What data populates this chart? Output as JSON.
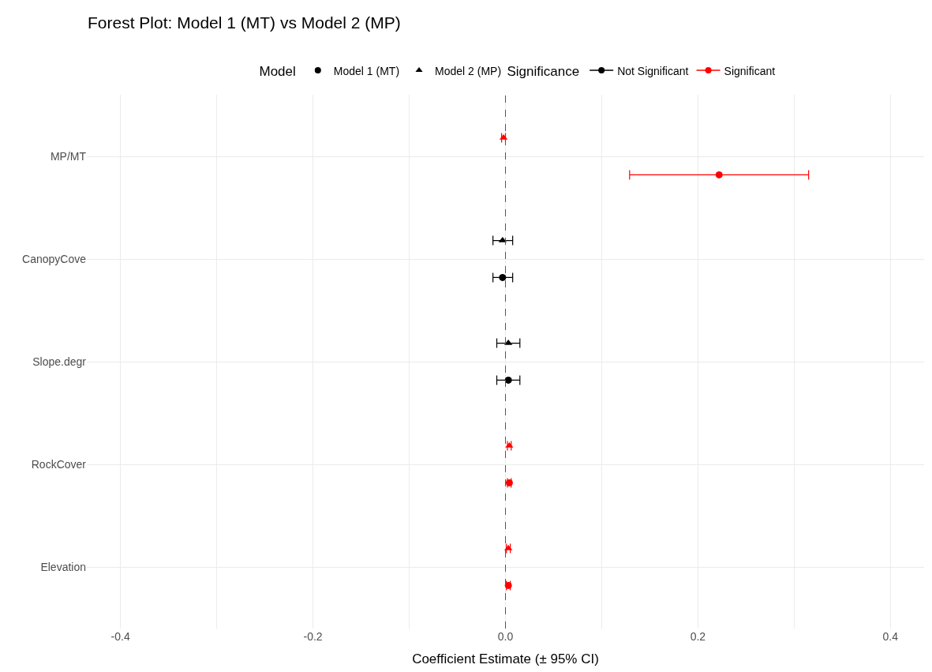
{
  "chart_data": {
    "type": "scatter",
    "orientation": "horizontal",
    "title": "Forest Plot: Model 1 (MT) vs Model 2 (MP)",
    "xlabel": "Coefficient Estimate (± 95% CI)",
    "legend_title": [
      "Model",
      "Significance"
    ],
    "categories": [
      "MP/MT",
      "CanopyCove",
      "Slope.degr",
      "RockCover",
      "Elevation"
    ],
    "series": [
      {
        "name": "Model 1 (MT)",
        "marker": "circle",
        "color": "#000000",
        "values": [
          0.222,
          -0.003,
          0.003,
          0.004,
          0.003
        ],
        "colors": [
          "#ff0000",
          "#000000",
          "#000000",
          "#ff0000",
          "#ff0000"
        ],
        "errors": [
          [
            0.129,
            0.315
          ],
          [
            -0.013,
            0.0075
          ],
          [
            -0.009,
            0.015
          ],
          [
            0.002,
            0.006
          ],
          [
            0.001,
            0.005
          ]
        ]
      },
      {
        "name": "Model 2 (MP)",
        "marker": "triangle",
        "color": "#000000",
        "values": [
          -0.002,
          -0.003,
          0.003,
          0.004,
          0.003
        ],
        "colors": [
          "#ff0000",
          "#000000",
          "#000000",
          "#ff0000",
          "#ff0000"
        ],
        "errors": [
          [
            -0.004,
            0.0
          ],
          [
            -0.013,
            0.0075
          ],
          [
            -0.009,
            0.015
          ],
          [
            0.002,
            0.006
          ],
          [
            0.001,
            0.005
          ]
        ]
      },
      {
        "name": "Not Significant",
        "marker": "circle",
        "color": "#000000",
        "values": [
          null,
          null,
          null,
          null,
          null
        ]
      },
      {
        "name": "Significant",
        "marker": "circle",
        "color": "#ff0000",
        "values": [
          null,
          null,
          null,
          null,
          null
        ]
      }
    ],
    "xlim": [
      -0.435,
      0.435
    ],
    "xticks": [
      {
        "value": -0.4,
        "label": "-0.4"
      },
      {
        "value": -0.3,
        "label": null
      },
      {
        "value": -0.2,
        "label": "-0.2"
      },
      {
        "value": -0.1,
        "label": null
      },
      {
        "value": 0,
        "label": "0.0"
      },
      {
        "value": 0.1,
        "label": null
      },
      {
        "value": 0.2,
        "label": "0.2"
      },
      {
        "value": 0.3,
        "label": null
      },
      {
        "value": 0.4,
        "label": "0.4"
      }
    ],
    "ref_lines": [
      {
        "axis": "x",
        "value": 0,
        "color": "#555555",
        "line_style": "dashed"
      }
    ],
    "grid": true,
    "legend": "top"
  }
}
